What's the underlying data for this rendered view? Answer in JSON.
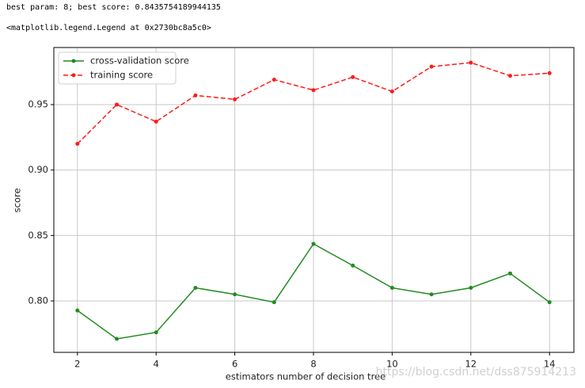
{
  "output_lines": [
    "best param: 8; best score: 0.8435754189944135",
    "<matplotlib.legend.Legend at 0x2730bc8a5c0>"
  ],
  "watermark": "https://blog.csdn.net/dss875914213",
  "chart_data": {
    "type": "line",
    "x_label": "estimators number of decision tree",
    "y_label": "score",
    "x": [
      2,
      3,
      4,
      5,
      6,
      7,
      8,
      9,
      10,
      11,
      12,
      13,
      14
    ],
    "series": [
      {
        "name": "cross-validation score",
        "color": "#228b22",
        "linestyle": "solid",
        "values": [
          0.7927,
          0.771,
          0.776,
          0.81,
          0.805,
          0.799,
          0.8436,
          0.827,
          0.81,
          0.805,
          0.81,
          0.821,
          0.799
        ]
      },
      {
        "name": "training score",
        "color": "#ff1a1a",
        "linestyle": "dashed",
        "values": [
          0.92,
          0.95,
          0.937,
          0.957,
          0.954,
          0.969,
          0.961,
          0.971,
          0.96,
          0.979,
          0.982,
          0.972,
          0.974
        ]
      }
    ],
    "xlim": [
      1.4,
      14.62
    ],
    "ylim": [
      0.7607,
      0.9936
    ],
    "xticks": [
      2,
      4,
      6,
      8,
      10,
      12,
      14
    ],
    "yticks": [
      {
        "value": 0.8,
        "label": "0.80"
      },
      0.85,
      {
        "value": 0.9,
        "label": "0.90"
      },
      0.95
    ],
    "grid": true,
    "legend": "upper-left"
  }
}
